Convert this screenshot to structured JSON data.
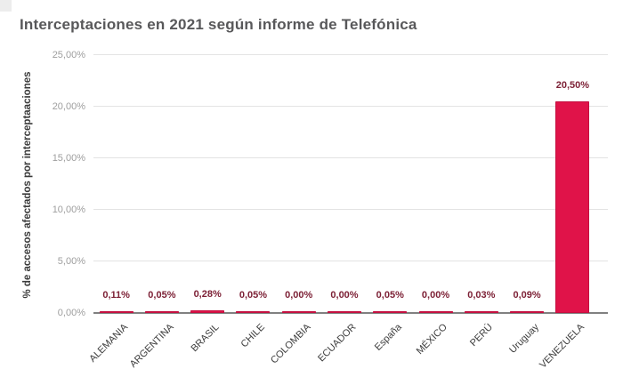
{
  "chart_data": {
    "type": "bar",
    "title": "Interceptaciones en 2021 según informe de Telefónica",
    "ylabel": "% de accesos afectados por interceptaaciones",
    "xlabel": "",
    "categories": [
      "ALEMANIA",
      "ARGENTINA",
      "BRASIL",
      "CHILE",
      "COLOMBIA",
      "ECUADOR",
      "España",
      "MÉXICO",
      "PERÚ",
      "Uruguay",
      "VENEZUELA"
    ],
    "values": [
      0.11,
      0.05,
      0.28,
      0.05,
      0.0,
      0.0,
      0.05,
      0.0,
      0.03,
      0.09,
      20.5
    ],
    "value_labels": [
      "0,11%",
      "0,05%",
      "0,28%",
      "0,05%",
      "0,00%",
      "0,00%",
      "0,05%",
      "0,00%",
      "0,03%",
      "0,09%",
      "20,50%"
    ],
    "yticks": [
      {
        "value": 0,
        "label": "0,00%"
      },
      {
        "value": 5,
        "label": "5,00%"
      },
      {
        "value": 10,
        "label": "10,00%"
      },
      {
        "value": 15,
        "label": "15,00%"
      },
      {
        "value": 20,
        "label": "20,00%"
      },
      {
        "value": 25,
        "label": "25,00%"
      }
    ],
    "ylim": [
      0,
      25
    ],
    "grid": true,
    "legend": "none",
    "colors": {
      "bar": "#e01349",
      "bar_border": "#c41040",
      "value_label": "#7d2136",
      "title": "#58585a",
      "ytick": "#9e9e9e",
      "xtick": "#3c3c3c",
      "ylabel": "#3a3a3a",
      "gridline": "#e3e3e3",
      "baseline": "#808080"
    }
  }
}
